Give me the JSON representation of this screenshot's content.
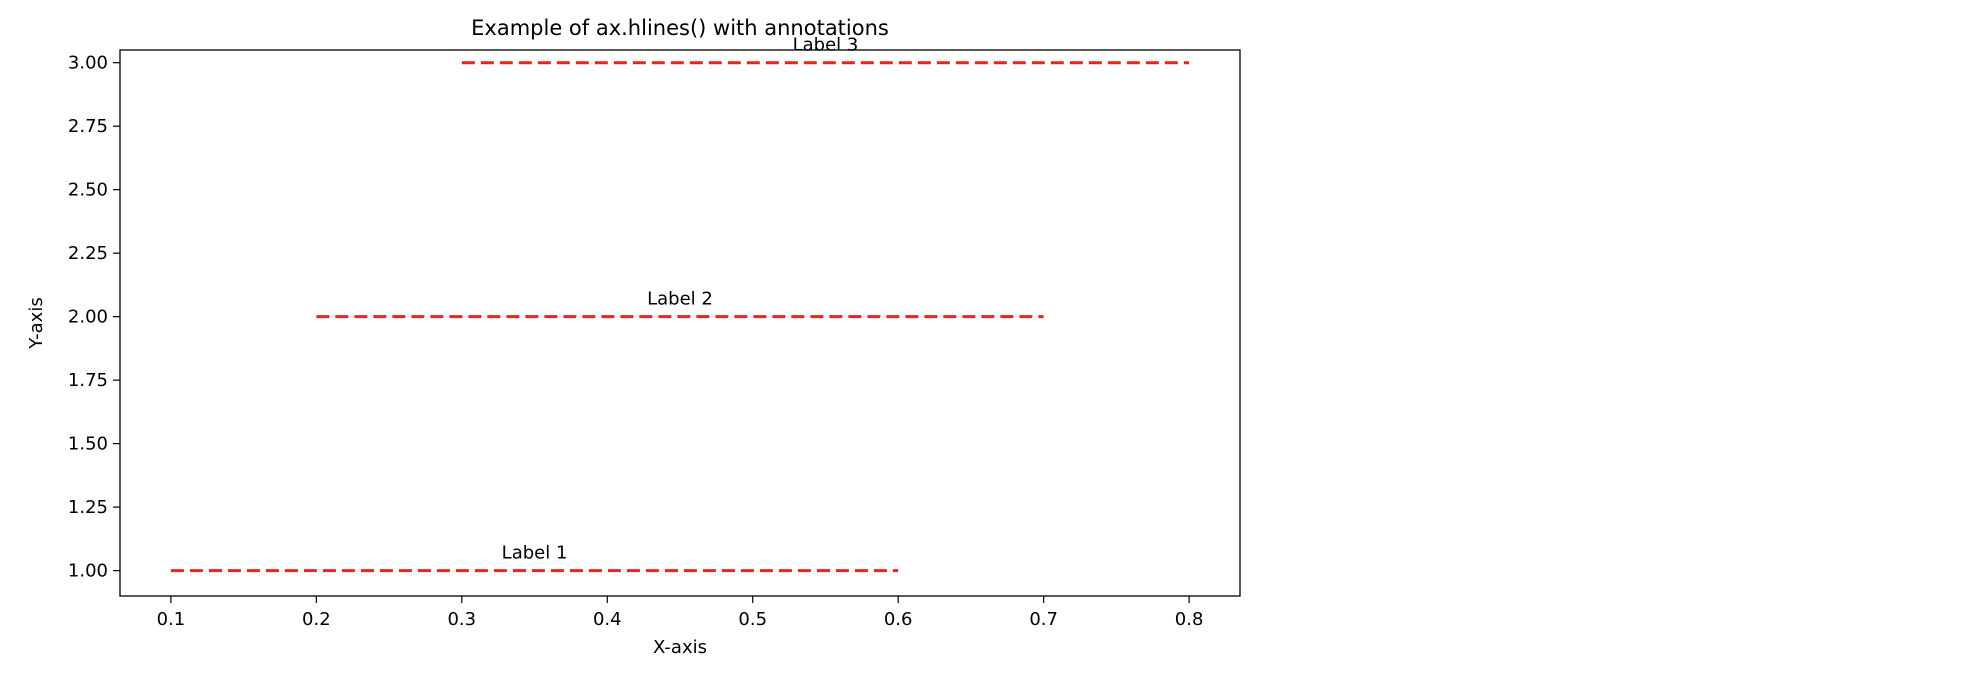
{
  "chart_data": {
    "type": "line",
    "title": "Example of ax.hlines() with annotations",
    "xlabel": "X-axis",
    "ylabel": "Y-axis",
    "xlim": [
      0.065,
      0.835
    ],
    "ylim": [
      0.9,
      3.05
    ],
    "xticks": [
      0.1,
      0.2,
      0.3,
      0.4,
      0.5,
      0.6,
      0.7,
      0.8
    ],
    "xtick_labels": [
      "0.1",
      "0.2",
      "0.3",
      "0.4",
      "0.5",
      "0.6",
      "0.7",
      "0.8"
    ],
    "yticks": [
      1.0,
      1.25,
      1.5,
      1.75,
      2.0,
      2.25,
      2.5,
      2.75,
      3.0
    ],
    "ytick_labels": [
      "1.00",
      "1.25",
      "1.50",
      "1.75",
      "2.00",
      "2.25",
      "2.50",
      "2.75",
      "3.00"
    ],
    "grid": false,
    "line_color": "#e8251c",
    "line_style": "dashed",
    "hlines": [
      {
        "y": 1,
        "xmin": 0.1,
        "xmax": 0.6
      },
      {
        "y": 2,
        "xmin": 0.2,
        "xmax": 0.7
      },
      {
        "y": 3,
        "xmin": 0.3,
        "xmax": 0.8
      }
    ],
    "annotations": [
      {
        "text": "Label 1",
        "x": 0.35,
        "y": 1.0
      },
      {
        "text": "Label 2",
        "x": 0.45,
        "y": 2.0
      },
      {
        "text": "Label 3",
        "x": 0.55,
        "y": 3.0
      }
    ]
  }
}
